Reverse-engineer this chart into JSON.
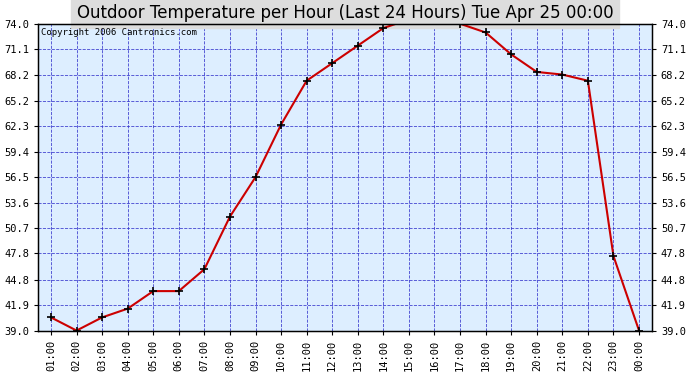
{
  "title": "Outdoor Temperature per Hour (Last 24 Hours) Tue Apr 25 00:00",
  "copyright": "Copyright 2006 Cantronics.com",
  "hours": [
    "01:00",
    "02:00",
    "03:00",
    "04:00",
    "05:00",
    "06:00",
    "07:00",
    "08:00",
    "09:00",
    "10:00",
    "11:00",
    "12:00",
    "13:00",
    "14:00",
    "15:00",
    "16:00",
    "17:00",
    "18:00",
    "19:00",
    "20:00",
    "21:00",
    "22:00",
    "23:00",
    "00:00"
  ],
  "temps": [
    40.5,
    39.0,
    40.5,
    41.5,
    43.5,
    43.5,
    46.0,
    52.0,
    56.5,
    62.5,
    67.5,
    69.5,
    71.5,
    73.5,
    74.5,
    74.5,
    74.0,
    73.0,
    70.5,
    68.5,
    68.2,
    67.5,
    47.5,
    39.0
  ],
  "ylim_min": 39.0,
  "ylim_max": 74.0,
  "yticks": [
    39.0,
    41.9,
    44.8,
    47.8,
    50.7,
    53.6,
    56.5,
    59.4,
    62.3,
    65.2,
    68.2,
    71.1,
    74.0
  ],
  "line_color": "#cc0000",
  "marker_color": "#000000",
  "fig_bg_color": "#ffffff",
  "plot_bg_color": "#ddeeff",
  "grid_color": "#3333cc",
  "title_fontsize": 12,
  "tick_fontsize": 7.5,
  "copyright_fontsize": 6.5,
  "title_bg": "#dddddd"
}
